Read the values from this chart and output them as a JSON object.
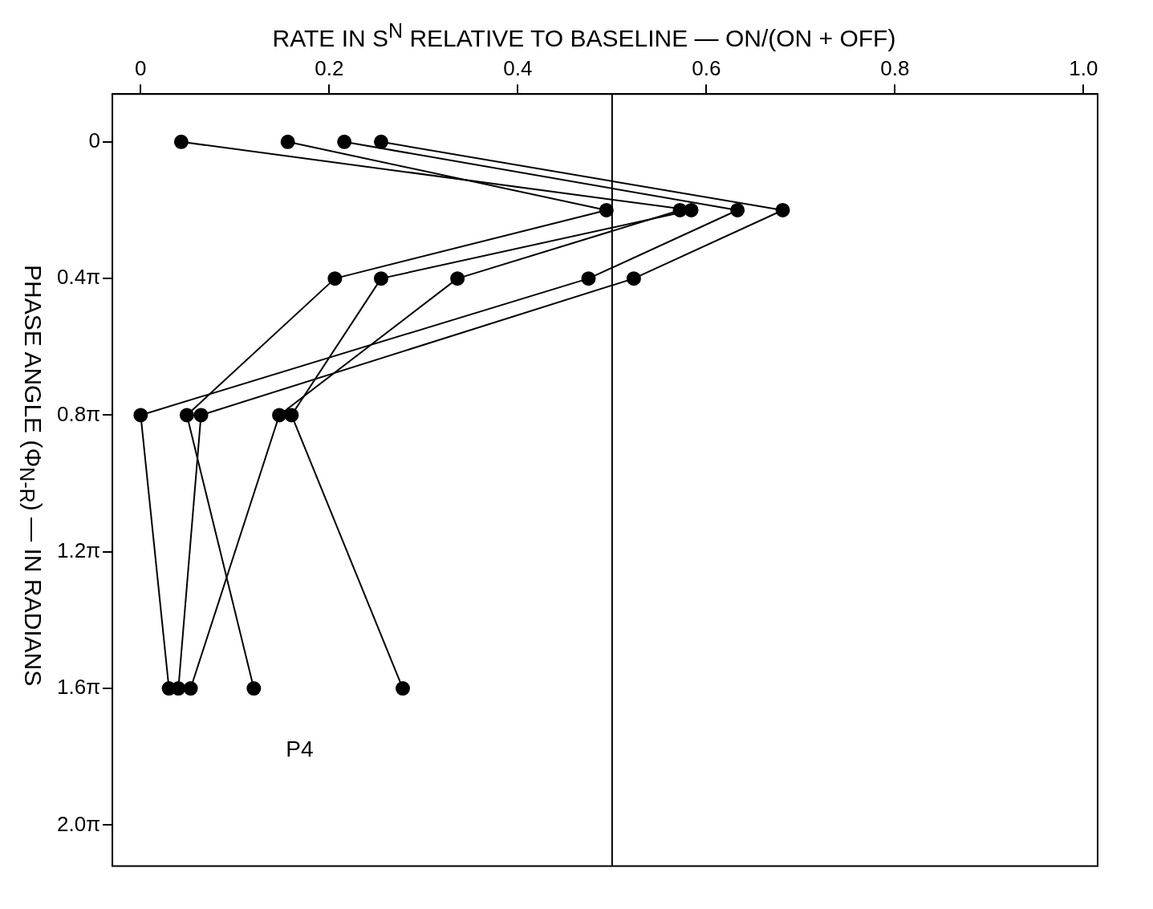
{
  "chart_data": {
    "type": "line",
    "orientation": "horizontal",
    "xlabel": "RATE IN S$^{N}$ RELATIVE TO BASELINE — ON/(ON + OFF)",
    "ylabel": "PHASE ANGLE (Φ$_{N-R}$) — IN RADIANS",
    "x": [
      0,
      0.6283,
      1.2566,
      2.5133,
      5.0265
    ],
    "series": [
      {
        "color": "#000000",
        "values": [
          0.043,
          0.584,
          0.255,
          0.16,
          0.278
        ]
      },
      {
        "color": "#000000",
        "values": [
          0.156,
          0.494,
          0.206,
          0.049,
          0.12
        ]
      },
      {
        "color": "#000000",
        "values": [
          0.216,
          0.633,
          0.475,
          0.0,
          0.03
        ]
      },
      {
        "color": "#000000",
        "values": [
          0.255,
          0.681,
          0.523,
          0.064,
          0.04
        ]
      },
      {
        "color": "#000000",
        "values": [
          null,
          0.572,
          0.336,
          0.147,
          0.053
        ]
      }
    ],
    "xlim": [
      -0.03,
      1.015
    ],
    "xticks": [
      0,
      0.2,
      0.4,
      0.6,
      0.8,
      {
        "value": 1.0,
        "label": "1.0"
      }
    ],
    "ylim": [
      6.66,
      -0.44
    ],
    "yticks": [
      0,
      {
        "value": 1.2566,
        "label": "0.4π"
      },
      {
        "value": 2.5133,
        "label": "0.8π"
      },
      {
        "value": 3.7699,
        "label": "1.2π"
      },
      {
        "value": 5.0265,
        "label": "1.6π"
      },
      {
        "value": 6.2832,
        "label": "2.0π"
      }
    ],
    "ref_lines": [
      {
        "axis": "x",
        "value": 0.5
      }
    ],
    "annotations": [
      "P4"
    ],
    "marker": "circle",
    "grid": false,
    "legend": false
  }
}
